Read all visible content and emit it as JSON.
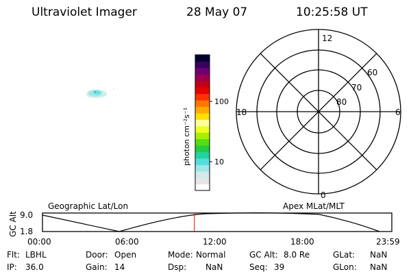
{
  "header": {
    "title": "Ultraviolet Imager",
    "date": "28 May 07",
    "time": "10:25:58 UT"
  },
  "colorbar": {
    "unit_label": "photon cm⁻²s⁻¹",
    "ticks": [
      "100",
      "10"
    ],
    "colors": [
      "#ffffff",
      "#e6e6e6",
      "#cfeaea",
      "#9fe6e6",
      "#55dddd",
      "#22d4a0",
      "#22cc44",
      "#55dd11",
      "#aaee00",
      "#eeff22",
      "#ffff99",
      "#ffe000",
      "#ffaa00",
      "#ff7700",
      "#ff3300",
      "#e60000",
      "#c00018",
      "#9b0050",
      "#700070",
      "#3b0060",
      "#000030"
    ]
  },
  "polar": {
    "mlt_labels": {
      "top": "12",
      "bottom": "0",
      "left": "18",
      "right": "6"
    },
    "lat_labels": [
      "60",
      "70",
      "80"
    ]
  },
  "timeline": {
    "left_title": "Geographic Lat/Lon",
    "right_title": "Apex MLat/MLT",
    "ylabel": "GC Alt",
    "y_ticks": [
      "9.0",
      "1.8"
    ],
    "x_ticks": [
      "00:00",
      "06:00",
      "12:00",
      "18:00",
      "23:59"
    ],
    "current_time_fraction": 0.4347,
    "marker_color": "#ff0000"
  },
  "status": {
    "flt_label": "Flt:",
    "flt": "LBHL",
    "ip_label": "IP:",
    "ip": "36.0",
    "door_label": "Door:",
    "door": "Open",
    "gain_label": "Gain:",
    "gain": "14",
    "mode_label": "Mode:",
    "mode": "Normal",
    "dsp_label": "Dsp:",
    "dsp": "NaN",
    "gcalt_label": "GC Alt:",
    "gcalt": "8.0 Re",
    "seq_label": "Seq:",
    "seq": "39",
    "glat_label": "GLat:",
    "glat": "NaN",
    "glon_label": "GLon:",
    "glon": "NaN"
  }
}
